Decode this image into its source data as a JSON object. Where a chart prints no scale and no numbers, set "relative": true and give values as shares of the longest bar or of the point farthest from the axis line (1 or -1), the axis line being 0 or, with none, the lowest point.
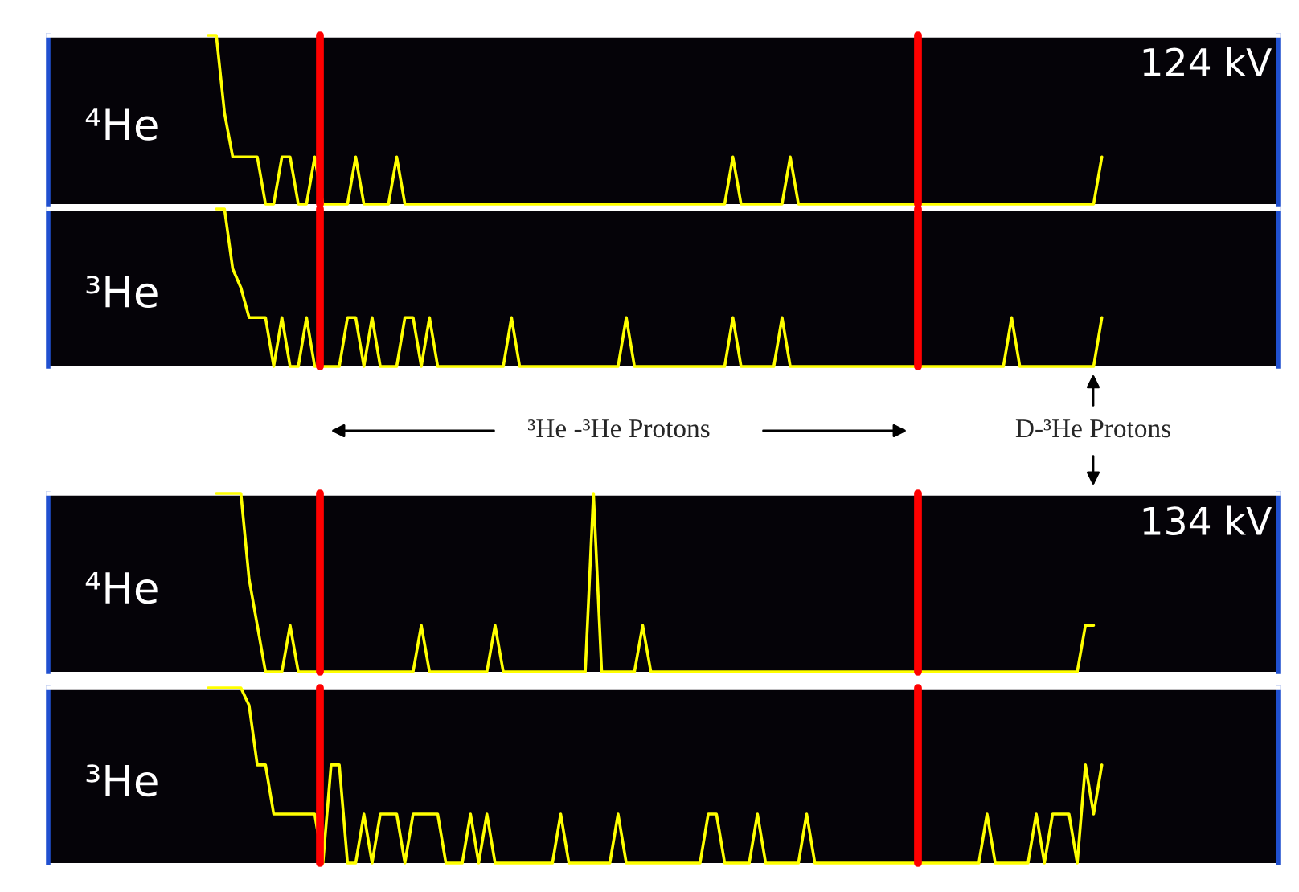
{
  "chart_data": [
    {
      "type": "line",
      "relative": true,
      "title": "⁴He",
      "annotations": [
        "124 kV"
      ],
      "categories": [
        null,
        null,
        null,
        null,
        null,
        null,
        null,
        null,
        null,
        null,
        null,
        null,
        null,
        null,
        null,
        null,
        null,
        null,
        null,
        null,
        null,
        null,
        null,
        null,
        null,
        null,
        null,
        null,
        null,
        null,
        null,
        null,
        null,
        null,
        null,
        null,
        null,
        null,
        null,
        null,
        null,
        null,
        null,
        null,
        null,
        null,
        null,
        null,
        null,
        null,
        null,
        null,
        null,
        null,
        null,
        null,
        null,
        null,
        null,
        null,
        null,
        null,
        null,
        null,
        null,
        null,
        null,
        null,
        null,
        null,
        null,
        null,
        null,
        null,
        null,
        null,
        null,
        null,
        null,
        null,
        null,
        null,
        null,
        null,
        null,
        null,
        null,
        null,
        null,
        null,
        null,
        null,
        null,
        null,
        null,
        null,
        null,
        null,
        null,
        null,
        null,
        null,
        null,
        null,
        null,
        null,
        null,
        null,
        null,
        null,
        null,
        null,
        null,
        null,
        null,
        null,
        null,
        null,
        null,
        null,
        null,
        null,
        null,
        null,
        null,
        null,
        null,
        null,
        null,
        null,
        null,
        null,
        null,
        null,
        null,
        null,
        null,
        null,
        null,
        null,
        null,
        null,
        null,
        null,
        null,
        null,
        null,
        null,
        null,
        null
      ],
      "color": "#ffff00",
      "values": [
        null,
        null,
        null,
        null,
        null,
        null,
        null,
        null,
        null,
        null,
        null,
        null,
        null,
        null,
        null,
        null,
        null,
        null,
        null,
        1,
        1,
        0.54,
        0.28,
        0.28,
        0.28,
        0.28,
        0,
        0,
        0.28,
        0.28,
        0,
        0,
        0.28,
        0,
        0,
        0,
        0,
        0.28,
        0,
        0,
        0,
        0,
        0.28,
        0,
        0,
        0,
        0,
        0,
        0,
        0,
        0,
        0,
        0,
        0,
        0,
        0,
        0,
        0,
        0,
        0,
        0,
        0,
        0,
        0,
        0,
        0,
        0,
        0,
        0,
        0,
        0,
        0,
        0,
        0,
        0,
        0,
        0,
        0,
        0,
        0,
        0,
        0,
        0,
        0.28,
        0,
        0,
        0,
        0,
        0,
        0,
        0.28,
        0,
        0,
        0,
        0,
        0,
        0,
        0,
        0,
        0,
        0,
        0,
        0,
        0,
        0,
        0,
        0,
        0,
        0,
        0,
        0,
        0,
        0,
        0,
        0,
        0,
        0,
        0,
        0,
        0,
        0,
        0,
        0,
        0,
        0,
        0,
        0,
        0,
        0.28,
        null,
        null,
        null,
        null,
        null,
        null,
        null,
        null,
        null,
        null,
        null,
        null,
        null,
        null,
        null,
        null,
        null,
        null,
        null,
        null,
        null
      ]
    },
    {
      "type": "line",
      "relative": true,
      "title": "³He",
      "annotations": [
        "³He -³He Protons",
        "D-³He Protons"
      ],
      "categories": [
        null,
        null,
        null,
        null,
        null,
        null,
        null,
        null,
        null,
        null,
        null,
        null,
        null,
        null,
        null,
        null,
        null,
        null,
        null,
        null,
        null,
        null,
        null,
        null,
        null,
        null,
        null,
        null,
        null,
        null,
        null,
        null,
        null,
        null,
        null,
        null,
        null,
        null,
        null,
        null,
        null,
        null,
        null,
        null,
        null,
        null,
        null,
        null,
        null,
        null,
        null,
        null,
        null,
        null,
        null,
        null,
        null,
        null,
        null,
        null,
        null,
        null,
        null,
        null,
        null,
        null,
        null,
        null,
        null,
        null,
        null,
        null,
        null,
        null,
        null,
        null,
        null,
        null,
        null,
        null,
        null,
        null,
        null,
        null,
        null,
        null,
        null,
        null,
        null,
        null,
        null,
        null,
        null,
        null,
        null,
        null,
        null,
        null,
        null,
        null,
        null,
        null,
        null,
        null,
        null,
        null,
        null,
        null,
        null,
        null,
        null,
        null,
        null,
        null,
        null,
        null,
        null,
        null,
        null,
        null,
        null,
        null,
        null,
        null,
        null,
        null,
        null,
        null,
        null,
        null,
        null,
        null,
        null,
        null,
        null,
        null,
        null,
        null,
        null,
        null,
        null,
        null,
        null,
        null,
        null,
        null,
        null,
        null,
        null,
        null
      ],
      "color": "#ffff00",
      "values": [
        null,
        null,
        null,
        null,
        null,
        null,
        null,
        null,
        null,
        null,
        null,
        null,
        null,
        null,
        null,
        null,
        null,
        null,
        null,
        null,
        1,
        1,
        0.62,
        0.5,
        0.31,
        0.31,
        0.31,
        0,
        0.31,
        0,
        0,
        0.31,
        0,
        0,
        0,
        0,
        0.31,
        0.31,
        0,
        0.31,
        0,
        0,
        0,
        0.31,
        0.31,
        0,
        0.31,
        0,
        0,
        0,
        0,
        0,
        0,
        0,
        0,
        0,
        0.31,
        0,
        0,
        0,
        0,
        0,
        0,
        0,
        0,
        0,
        0,
        0,
        0,
        0,
        0.31,
        0,
        0,
        0,
        0,
        0,
        0,
        0,
        0,
        0,
        0,
        0,
        0,
        0.31,
        0,
        0,
        0,
        0,
        0,
        0.31,
        0,
        0,
        0,
        0,
        0,
        0,
        0,
        0,
        0,
        0,
        0,
        0,
        0,
        0,
        0,
        0,
        0,
        0,
        0,
        0,
        0,
        0,
        0,
        0,
        0,
        0,
        0,
        0.31,
        0,
        0,
        0,
        0,
        0,
        0,
        0,
        0,
        0,
        0,
        0.31,
        null,
        null,
        null,
        null,
        null,
        null,
        null,
        null,
        null,
        null,
        null,
        null,
        null,
        null,
        null,
        null,
        null,
        null,
        null,
        null,
        null
      ]
    },
    {
      "type": "line",
      "relative": true,
      "title": "⁴He",
      "annotations": [
        "134 kV"
      ],
      "categories": [
        null,
        null,
        null,
        null,
        null,
        null,
        null,
        null,
        null,
        null,
        null,
        null,
        null,
        null,
        null,
        null,
        null,
        null,
        null,
        null,
        null,
        null,
        null,
        null,
        null,
        null,
        null,
        null,
        null,
        null,
        null,
        null,
        null,
        null,
        null,
        null,
        null,
        null,
        null,
        null,
        null,
        null,
        null,
        null,
        null,
        null,
        null,
        null,
        null,
        null,
        null,
        null,
        null,
        null,
        null,
        null,
        null,
        null,
        null,
        null,
        null,
        null,
        null,
        null,
        null,
        null,
        null,
        null,
        null,
        null,
        null,
        null,
        null,
        null,
        null,
        null,
        null,
        null,
        null,
        null,
        null,
        null,
        null,
        null,
        null,
        null,
        null,
        null,
        null,
        null,
        null,
        null,
        null,
        null,
        null,
        null,
        null,
        null,
        null,
        null,
        null,
        null,
        null,
        null,
        null,
        null,
        null,
        null,
        null,
        null,
        null,
        null,
        null,
        null,
        null,
        null,
        null,
        null,
        null,
        null,
        null,
        null,
        null,
        null,
        null,
        null,
        null,
        null,
        null,
        null,
        null,
        null,
        null,
        null,
        null,
        null,
        null,
        null,
        null,
        null,
        null,
        null,
        null,
        null,
        null,
        null,
        null,
        null,
        null,
        null
      ],
      "color": "#ffff00",
      "values": [
        null,
        null,
        null,
        null,
        null,
        null,
        null,
        null,
        null,
        null,
        null,
        null,
        null,
        null,
        null,
        null,
        null,
        null,
        null,
        null,
        1,
        1,
        1,
        1,
        0.52,
        0.26,
        0,
        0,
        0,
        0.26,
        0,
        0,
        0,
        0,
        0,
        0,
        0,
        0,
        0,
        0,
        0,
        0,
        0,
        0,
        0,
        0.26,
        0,
        0,
        0,
        0,
        0,
        0,
        0,
        0,
        0.26,
        0,
        0,
        0,
        0,
        0,
        0,
        0,
        0,
        0,
        0,
        0,
        1,
        0,
        0,
        0,
        0,
        0,
        0.26,
        0,
        0,
        0,
        0,
        0,
        0,
        0,
        0,
        0,
        0,
        0,
        0,
        0,
        0,
        0,
        0,
        0,
        0,
        0,
        0,
        0,
        0,
        0,
        0,
        0,
        0,
        0,
        0,
        0,
        0,
        0,
        0,
        0,
        0,
        0,
        0,
        0,
        0,
        0,
        0,
        0,
        0,
        0,
        0,
        0,
        0,
        0,
        0,
        0,
        0,
        0,
        0,
        0,
        0.26,
        0.26,
        null,
        null,
        null,
        null,
        null,
        null,
        null,
        null,
        null,
        null,
        null,
        null,
        null,
        null,
        null,
        null,
        null,
        null,
        null,
        null,
        null,
        null
      ]
    },
    {
      "type": "line",
      "relative": true,
      "title": "³He",
      "categories": [
        null,
        null,
        null,
        null,
        null,
        null,
        null,
        null,
        null,
        null,
        null,
        null,
        null,
        null,
        null,
        null,
        null,
        null,
        null,
        null,
        null,
        null,
        null,
        null,
        null,
        null,
        null,
        null,
        null,
        null,
        null,
        null,
        null,
        null,
        null,
        null,
        null,
        null,
        null,
        null,
        null,
        null,
        null,
        null,
        null,
        null,
        null,
        null,
        null,
        null,
        null,
        null,
        null,
        null,
        null,
        null,
        null,
        null,
        null,
        null,
        null,
        null,
        null,
        null,
        null,
        null,
        null,
        null,
        null,
        null,
        null,
        null,
        null,
        null,
        null,
        null,
        null,
        null,
        null,
        null,
        null,
        null,
        null,
        null,
        null,
        null,
        null,
        null,
        null,
        null,
        null,
        null,
        null,
        null,
        null,
        null,
        null,
        null,
        null,
        null,
        null,
        null,
        null,
        null,
        null,
        null,
        null,
        null,
        null,
        null,
        null,
        null,
        null,
        null,
        null,
        null,
        null,
        null,
        null,
        null,
        null,
        null,
        null,
        null,
        null,
        null,
        null,
        null,
        null,
        null,
        null,
        null,
        null,
        null,
        null,
        null,
        null,
        null,
        null,
        null,
        null,
        null,
        null,
        null,
        null,
        null,
        null,
        null,
        null,
        null
      ],
      "color": "#ffff00",
      "values": [
        null,
        null,
        null,
        null,
        null,
        null,
        null,
        null,
        null,
        null,
        null,
        null,
        null,
        null,
        null,
        null,
        null,
        null,
        null,
        1,
        1,
        1,
        1,
        1,
        0.9,
        0.56,
        0.56,
        0.28,
        0.28,
        0.28,
        0.28,
        0.28,
        0.28,
        0,
        0.56,
        0.56,
        0,
        0,
        0.28,
        0,
        0.28,
        0.28,
        0.28,
        0,
        0.28,
        0.28,
        0.28,
        0.28,
        0,
        0,
        0,
        0.28,
        0,
        0.28,
        0,
        0,
        0,
        0,
        0,
        0,
        0,
        0,
        0.28,
        0,
        0,
        0,
        0,
        0,
        0,
        0.28,
        0,
        0,
        0,
        0,
        0,
        0,
        0,
        0,
        0,
        0,
        0.28,
        0.28,
        0,
        0,
        0,
        0,
        0.28,
        0,
        0,
        0,
        0,
        0,
        0.28,
        0,
        0,
        0,
        0,
        0,
        0,
        0,
        0,
        0,
        0,
        0,
        0,
        0,
        0,
        0,
        0,
        0,
        0,
        0,
        0,
        0,
        0.28,
        0,
        0,
        0,
        0,
        0,
        0.28,
        0,
        0.28,
        0.28,
        0.28,
        0,
        0.56,
        0.28,
        0.56,
        null,
        null,
        null,
        null,
        null,
        null,
        null,
        null,
        null,
        null,
        null,
        null,
        null,
        null,
        null,
        null,
        null,
        null,
        null,
        null,
        null
      ]
    }
  ]
}
